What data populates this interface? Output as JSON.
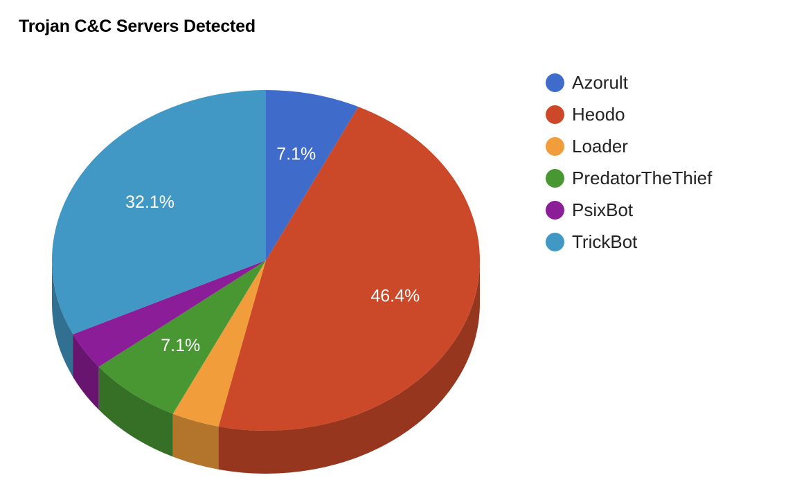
{
  "chart_data": {
    "type": "pie",
    "title": "Trojan C&C Servers Detected",
    "legend_position": "right",
    "three_d": true,
    "slices": [
      {
        "label": "Azorult",
        "value": 7.1,
        "display": "7.1%",
        "color": "#3f6ccb"
      },
      {
        "label": "Heodo",
        "value": 46.4,
        "display": "46.4%",
        "color": "#cb4929"
      },
      {
        "label": "Loader",
        "value": 3.6,
        "display": "",
        "color": "#f29d3b"
      },
      {
        "label": "PredatorTheThief",
        "value": 7.1,
        "display": "7.1%",
        "color": "#489733"
      },
      {
        "label": "PsixBot",
        "value": 3.6,
        "display": "",
        "color": "#8c1d98"
      },
      {
        "label": "TrickBot",
        "value": 32.1,
        "display": "32.1%",
        "color": "#4298c4"
      }
    ]
  }
}
